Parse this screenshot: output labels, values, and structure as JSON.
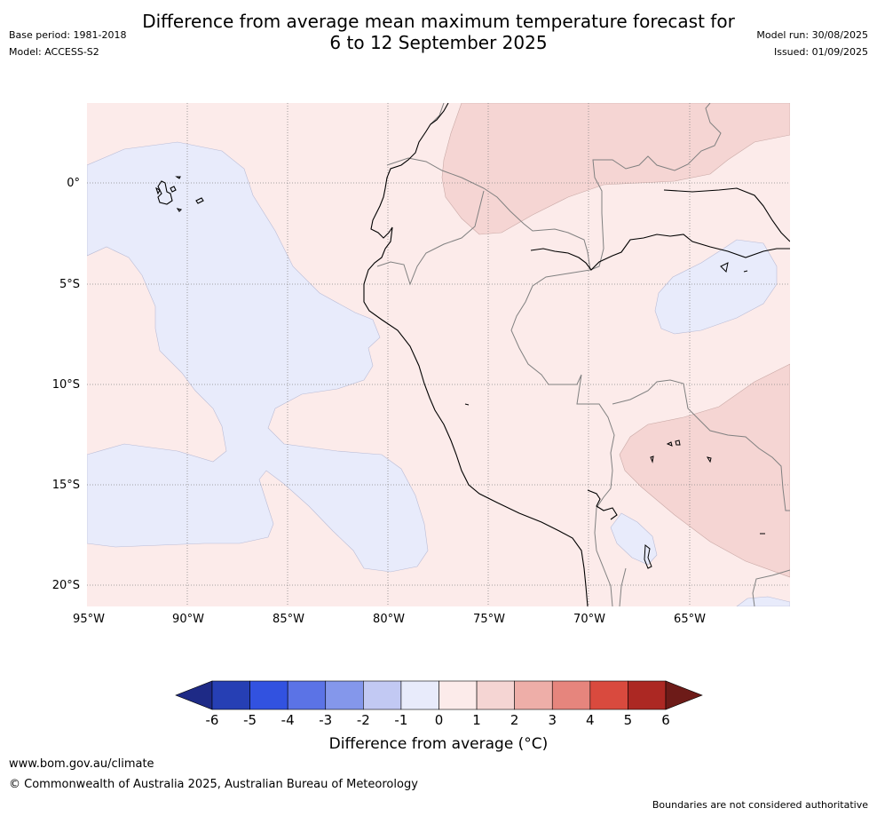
{
  "header": {
    "title_line1": "Difference from average mean maximum temperature forecast for",
    "title_line2": "6 to 12 September 2025",
    "base_period": "Base period: 1981-2018",
    "model": "Model: ACCESS-S2",
    "model_run": "Model run: 30/08/2025",
    "issued": "Issued: 01/09/2025"
  },
  "map": {
    "extent": {
      "lon": [
        -95,
        -60
      ],
      "lat": [
        -21,
        4
      ]
    },
    "lat_ticks": [
      {
        "value": 0,
        "label": "0°"
      },
      {
        "value": -5,
        "label": "5°S"
      },
      {
        "value": -10,
        "label": "10°S"
      },
      {
        "value": -15,
        "label": "15°S"
      },
      {
        "value": -20,
        "label": "20°S"
      }
    ],
    "lon_ticks": [
      {
        "value": -95,
        "label": "95°W"
      },
      {
        "value": -90,
        "label": "90°W"
      },
      {
        "value": -85,
        "label": "85°W"
      },
      {
        "value": -80,
        "label": "80°W"
      },
      {
        "value": -75,
        "label": "75°W"
      },
      {
        "value": -70,
        "label": "70°W"
      },
      {
        "value": -65,
        "label": "65°W"
      }
    ]
  },
  "colorbar": {
    "label": "Difference from average (°C)",
    "ticks": [
      "-6",
      "-5",
      "-4",
      "-3",
      "-2",
      "-1",
      "0",
      "1",
      "2",
      "3",
      "4",
      "5",
      "6"
    ],
    "colors": [
      "#1e2a86",
      "#263fb4",
      "#3252e0",
      "#5b73e6",
      "#8497eb",
      "#c2c9f3",
      "#e8ebfb",
      "#fcebea",
      "#f5d5d3",
      "#eeaea8",
      "#e6857d",
      "#d94a3e",
      "#ac2823",
      "#6d1b18"
    ],
    "map_colors": {
      "below_0": "#e8ebfb",
      "zero_to_1": "#fcebea",
      "one_to_2": "#f5d5d3"
    }
  },
  "footer": {
    "url": "www.bom.gov.au/climate",
    "copyright": "© Commonwealth of Australia 2025, Australian Bureau of Meteorology",
    "disclaimer": "Boundaries are not considered authoritative"
  }
}
